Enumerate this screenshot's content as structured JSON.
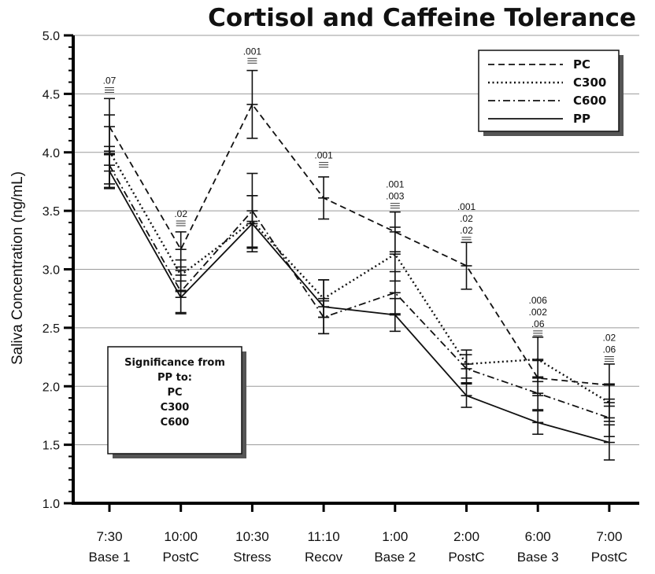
{
  "chart_data": {
    "type": "line",
    "title": "Cortisol and Caffeine Tolerance",
    "ylabel": "Saliva Concentration (ng/mL)",
    "xlabel": "",
    "ylim": [
      1.0,
      5.0
    ],
    "yticks": [
      "1.0",
      "1.5",
      "2.0",
      "2.5",
      "3.0",
      "3.5",
      "4.0",
      "4.5",
      "5.0"
    ],
    "grid": true,
    "legend_position": "top-right",
    "categories": [
      {
        "time": "7:30",
        "phase": "Base 1"
      },
      {
        "time": "10:00",
        "phase": "PostC"
      },
      {
        "time": "10:30",
        "phase": "Stress"
      },
      {
        "time": "11:10",
        "phase": "Recov"
      },
      {
        "time": "1:00",
        "phase": "Base 2"
      },
      {
        "time": "2:00",
        "phase": "PostC"
      },
      {
        "time": "6:00",
        "phase": "Base 3"
      },
      {
        "time": "7:00",
        "phase": "PostC"
      }
    ],
    "series": [
      {
        "name": "PC",
        "style": "dashed",
        "values": [
          4.22,
          3.17,
          4.41,
          3.61,
          3.32,
          3.03,
          2.07,
          2.01
        ],
        "error": [
          0.24,
          0.15,
          0.29,
          0.18,
          0.17,
          0.2,
          0.15,
          0.18
        ]
      },
      {
        "name": "C300",
        "style": "dotted",
        "values": [
          4.01,
          2.95,
          3.41,
          2.75,
          3.13,
          2.19,
          2.23,
          1.86
        ],
        "error": [
          0.31,
          0.13,
          0.22,
          0.16,
          0.23,
          0.12,
          0.19,
          0.16
        ]
      },
      {
        "name": "C600",
        "style": "dashdot",
        "values": [
          3.89,
          2.81,
          3.5,
          2.59,
          2.8,
          2.15,
          1.94,
          1.73
        ],
        "error": [
          0.16,
          0.18,
          0.32,
          0.14,
          0.18,
          0.12,
          0.14,
          0.16
        ]
      },
      {
        "name": "PP",
        "style": "solid",
        "values": [
          3.84,
          2.76,
          3.39,
          2.68,
          2.61,
          1.92,
          1.69,
          1.52
        ],
        "error": [
          0.15,
          0.14,
          0.24,
          0.23,
          0.14,
          0.1,
          0.1,
          0.15
        ]
      }
    ],
    "significance": [
      {
        "category": 0,
        "labels": [
          ".07"
        ],
        "anchor": 4.56
      },
      {
        "category": 1,
        "labels": [
          ".02"
        ],
        "anchor": 3.42
      },
      {
        "category": 2,
        "labels": [
          ".001"
        ],
        "anchor": 4.81
      },
      {
        "category": 3,
        "labels": [
          ".001"
        ],
        "anchor": 3.92
      },
      {
        "category": 4,
        "labels": [
          ".001",
          ".003"
        ],
        "anchor": 3.57
      },
      {
        "category": 5,
        "labels": [
          ".001",
          ".02",
          ".02"
        ],
        "anchor": 3.28
      },
      {
        "category": 6,
        "labels": [
          ".006",
          ".002",
          ".06"
        ],
        "anchor": 2.48
      },
      {
        "category": 7,
        "labels": [
          ".02",
          ".06"
        ],
        "anchor": 2.26
      }
    ],
    "annotation": {
      "lines": [
        "Significance from",
        "PP to:",
        "PC",
        "C300",
        "C600"
      ]
    }
  }
}
